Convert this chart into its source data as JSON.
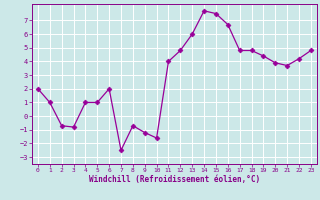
{
  "x": [
    0,
    1,
    2,
    3,
    4,
    5,
    6,
    7,
    8,
    9,
    10,
    11,
    12,
    13,
    14,
    15,
    16,
    17,
    18,
    19,
    20,
    21,
    22,
    23
  ],
  "y": [
    2,
    1,
    -0.7,
    -0.8,
    1,
    1,
    2,
    -2.5,
    -0.7,
    -1.2,
    -1.6,
    4,
    4.8,
    6,
    7.7,
    7.5,
    6.7,
    4.8,
    4.8,
    4.4,
    3.9,
    3.7,
    4.2,
    4.8
  ],
  "line_color": "#990099",
  "marker": "D",
  "marker_size": 2.5,
  "bg_color": "#cce8e8",
  "grid_color": "#ffffff",
  "xlabel": "Windchill (Refroidissement éolien,°C)",
  "xlabel_color": "#880088",
  "tick_color": "#880088",
  "ylim": [
    -3.5,
    8.2
  ],
  "xlim": [
    -0.5,
    23.5
  ],
  "yticks": [
    -3,
    -2,
    -1,
    0,
    1,
    2,
    3,
    4,
    5,
    6,
    7
  ],
  "xticks": [
    0,
    1,
    2,
    3,
    4,
    5,
    6,
    7,
    8,
    9,
    10,
    11,
    12,
    13,
    14,
    15,
    16,
    17,
    18,
    19,
    20,
    21,
    22,
    23
  ]
}
